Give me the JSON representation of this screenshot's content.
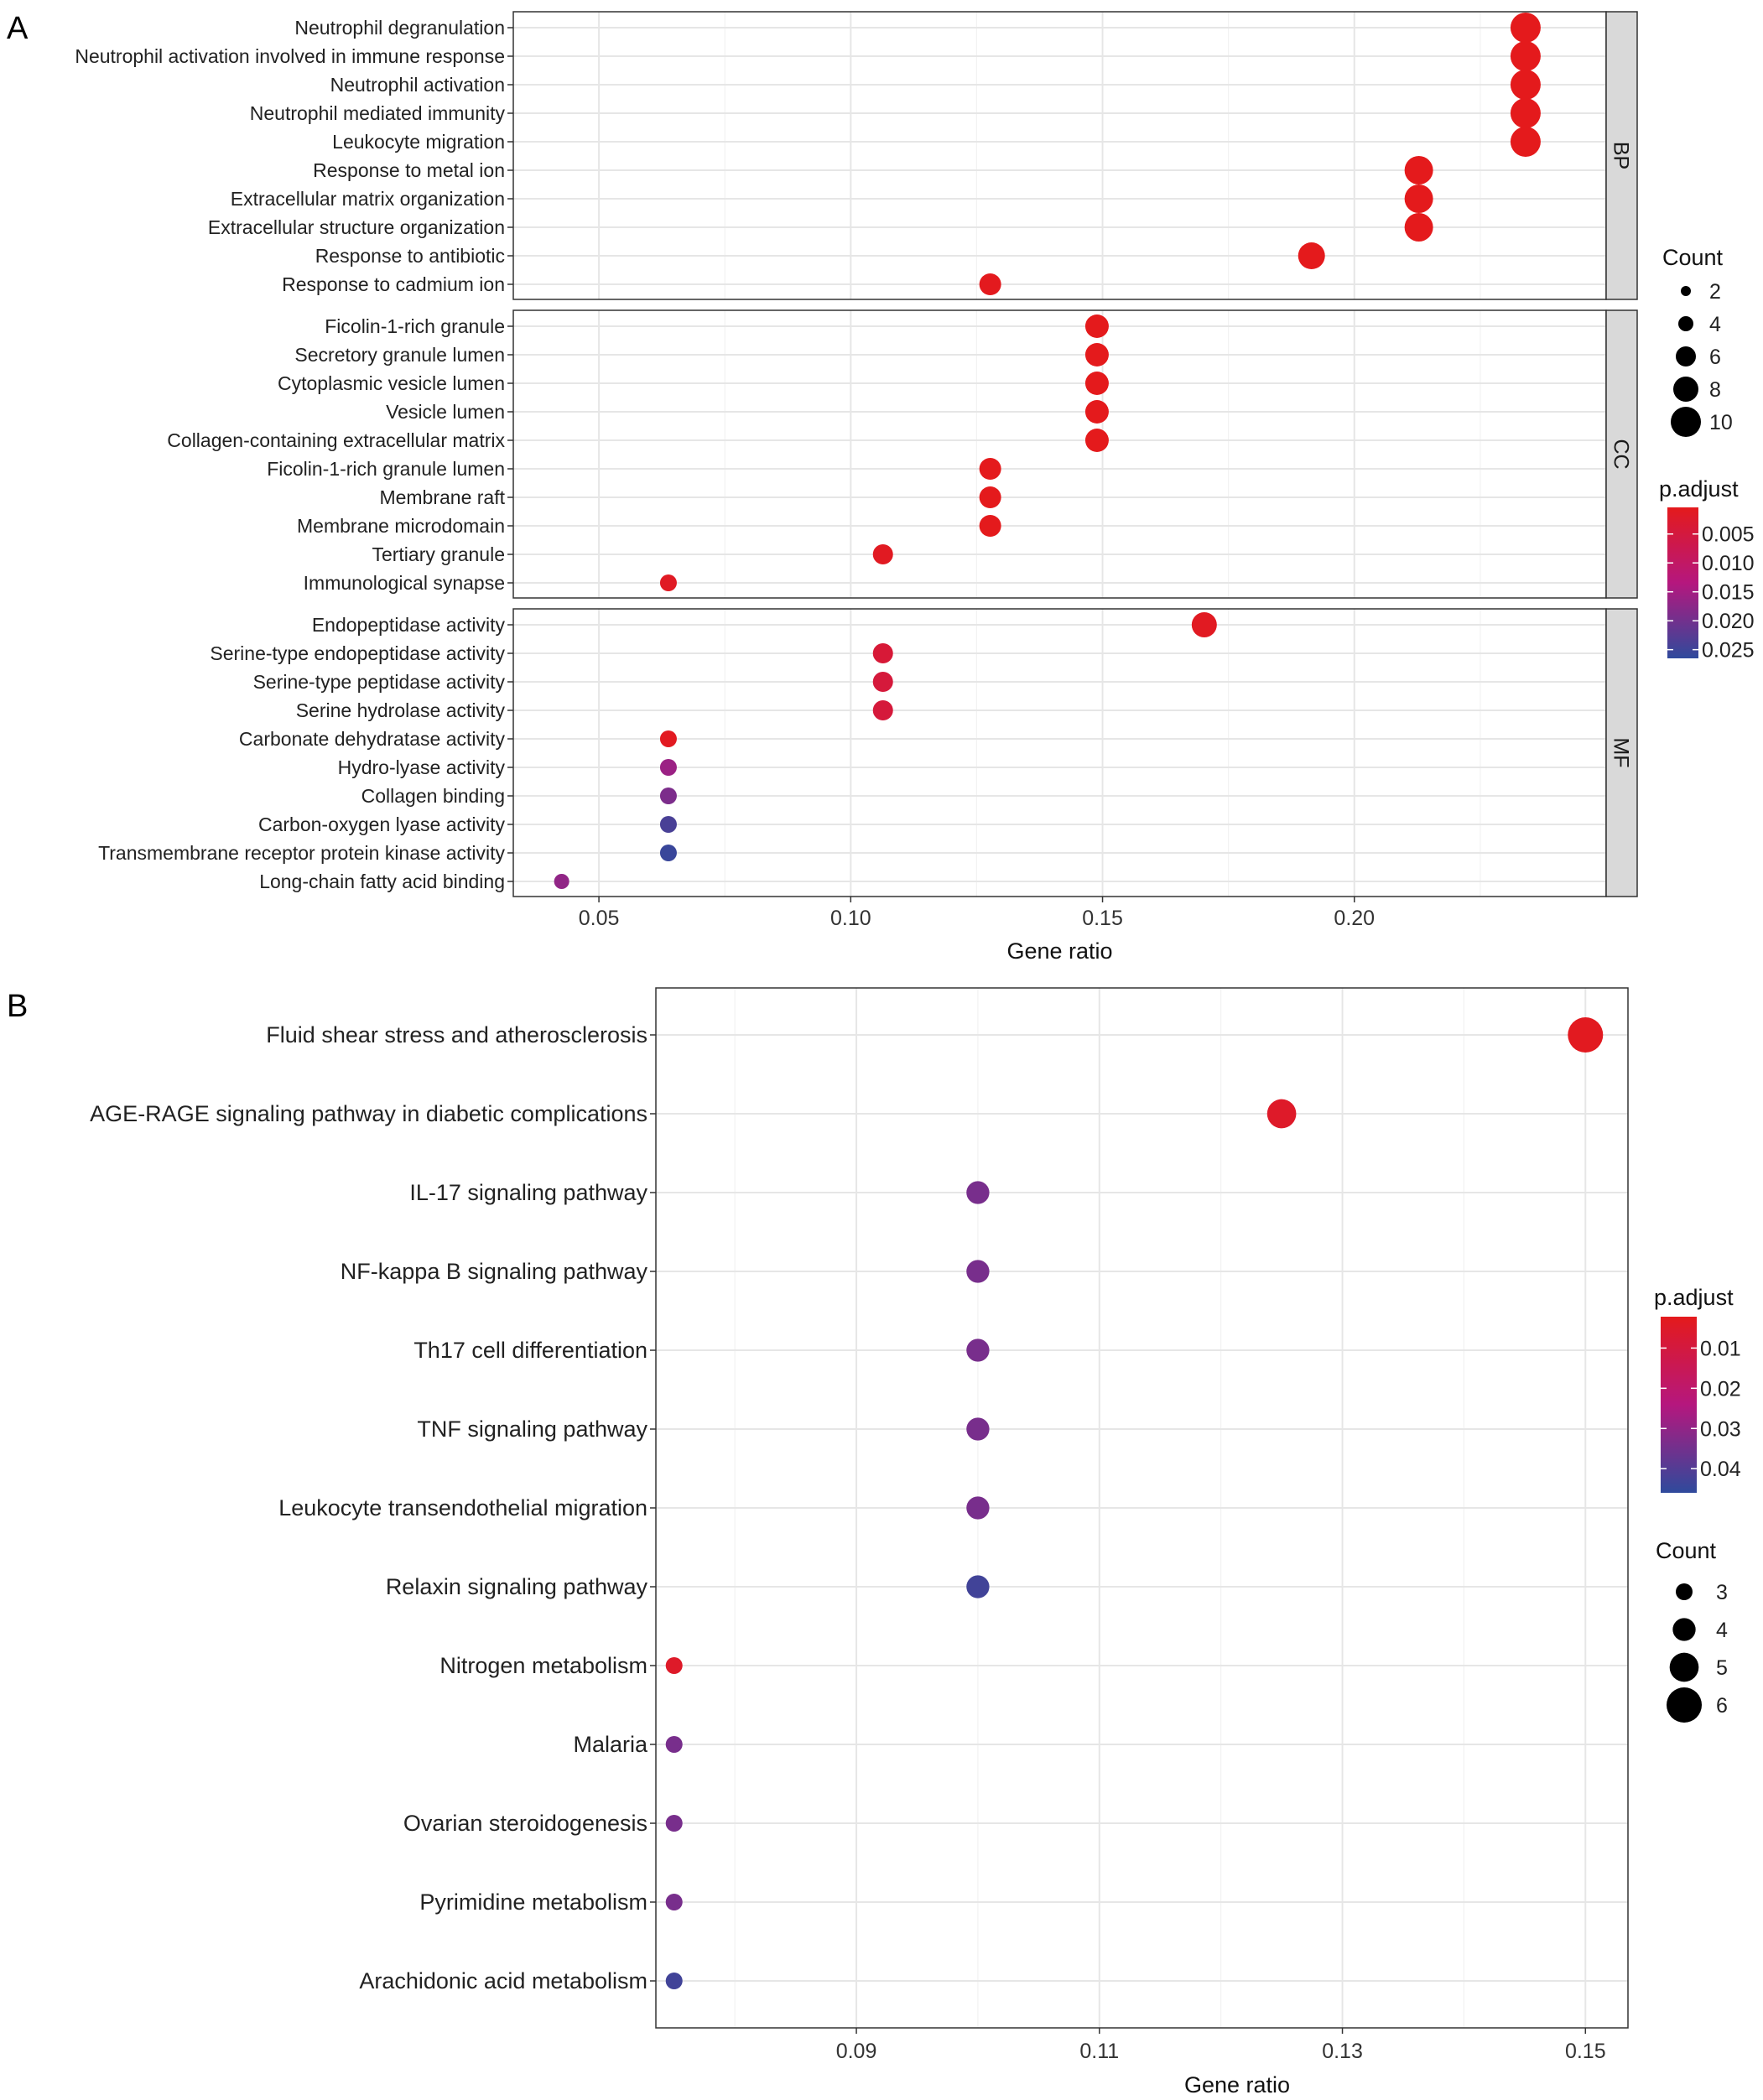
{
  "chart_data": [
    {
      "panel": "A",
      "type": "scatter",
      "xlabel": "Gene ratio",
      "xlim": [
        0.033,
        0.25
      ],
      "xticks": [
        "0.05",
        "0.10",
        "0.15",
        "0.20"
      ],
      "facets": [
        {
          "name": "BP",
          "terms": [
            {
              "label": "Neutrophil degranulation",
              "x": 0.234,
              "count": 11,
              "padj": 0.0004
            },
            {
              "label": "Neutrophil activation involved in immune response",
              "x": 0.234,
              "count": 11,
              "padj": 0.0004
            },
            {
              "label": "Neutrophil activation",
              "x": 0.234,
              "count": 11,
              "padj": 0.0004
            },
            {
              "label": "Neutrophil mediated immunity",
              "x": 0.234,
              "count": 11,
              "padj": 0.0004
            },
            {
              "label": "Leukocyte migration",
              "x": 0.234,
              "count": 11,
              "padj": 0.0004
            },
            {
              "label": "Response to metal ion",
              "x": 0.2128,
              "count": 10,
              "padj": 0.0004
            },
            {
              "label": "Extracellular matrix organization",
              "x": 0.2128,
              "count": 10,
              "padj": 0.0004
            },
            {
              "label": "Extracellular structure organization",
              "x": 0.2128,
              "count": 10,
              "padj": 0.0004
            },
            {
              "label": "Response to antibiotic",
              "x": 0.1915,
              "count": 9,
              "padj": 0.0004
            },
            {
              "label": "Response to cadmium ion",
              "x": 0.1277,
              "count": 6,
              "padj": 0.0006
            }
          ]
        },
        {
          "name": "CC",
          "terms": [
            {
              "label": "Ficolin-1-rich granule",
              "x": 0.1489,
              "count": 7,
              "padj": 0.0004
            },
            {
              "label": "Secretory granule lumen",
              "x": 0.1489,
              "count": 7,
              "padj": 0.0004
            },
            {
              "label": "Cytoplasmic vesicle lumen",
              "x": 0.1489,
              "count": 7,
              "padj": 0.0004
            },
            {
              "label": "Vesicle lumen",
              "x": 0.1489,
              "count": 7,
              "padj": 0.0004
            },
            {
              "label": "Collagen-containing extracellular matrix",
              "x": 0.1489,
              "count": 7,
              "padj": 0.0004
            },
            {
              "label": "Ficolin-1-rich granule lumen",
              "x": 0.1277,
              "count": 6,
              "padj": 0.0004
            },
            {
              "label": "Membrane raft",
              "x": 0.1277,
              "count": 6,
              "padj": 0.0004
            },
            {
              "label": "Membrane microdomain",
              "x": 0.1277,
              "count": 6,
              "padj": 0.0004
            },
            {
              "label": "Tertiary granule",
              "x": 0.1064,
              "count": 5,
              "padj": 0.0012
            },
            {
              "label": "Immunological synapse",
              "x": 0.0638,
              "count": 3,
              "padj": 0.0015
            }
          ]
        },
        {
          "name": "MF",
          "terms": [
            {
              "label": "Endopeptidase activity",
              "x": 0.1702,
              "count": 8,
              "padj": 0.0012
            },
            {
              "label": "Serine-type endopeptidase activity",
              "x": 0.1064,
              "count": 5,
              "padj": 0.004
            },
            {
              "label": "Serine-type peptidase activity",
              "x": 0.1064,
              "count": 5,
              "padj": 0.0045
            },
            {
              "label": "Serine hydrolase activity",
              "x": 0.1064,
              "count": 5,
              "padj": 0.0045
            },
            {
              "label": "Carbonate dehydratase activity",
              "x": 0.0638,
              "count": 3,
              "padj": 0.001
            },
            {
              "label": "Hydro-lyase activity",
              "x": 0.0638,
              "count": 3,
              "padj": 0.016
            },
            {
              "label": "Collagen binding",
              "x": 0.0638,
              "count": 3,
              "padj": 0.019
            },
            {
              "label": "Carbon-oxygen lyase activity",
              "x": 0.0638,
              "count": 3,
              "padj": 0.024
            },
            {
              "label": "Transmembrane receptor protein kinase activity",
              "x": 0.0638,
              "count": 3,
              "padj": 0.0255
            },
            {
              "label": "Long-chain fatty acid binding",
              "x": 0.0426,
              "count": 2,
              "padj": 0.017
            }
          ]
        }
      ],
      "legend_count": {
        "title": "Count",
        "values": [
          2,
          4,
          6,
          8,
          10
        ]
      },
      "legend_padj": {
        "title": "p.adjust",
        "ticks": [
          "0.005",
          "0.010",
          "0.015",
          "0.020",
          "0.025"
        ],
        "min": 0.0004,
        "max": 0.0265
      }
    },
    {
      "panel": "B",
      "type": "scatter",
      "xlabel": "Gene ratio",
      "xlim": [
        0.0735,
        0.1535
      ],
      "xticks": [
        "0.09",
        "0.11",
        "0.13",
        "0.15"
      ],
      "terms": [
        {
          "label": "Fluid shear stress and atherosclerosis",
          "x": 0.15,
          "count": 6,
          "padj": 0.003
        },
        {
          "label": "AGE-RAGE signaling pathway in diabetic complications",
          "x": 0.125,
          "count": 5,
          "padj": 0.005
        },
        {
          "label": "IL-17 signaling pathway",
          "x": 0.1,
          "count": 4,
          "padj": 0.034
        },
        {
          "label": "NF-kappa B signaling pathway",
          "x": 0.1,
          "count": 4,
          "padj": 0.034
        },
        {
          "label": "Th17 cell differentiation",
          "x": 0.1,
          "count": 4,
          "padj": 0.034
        },
        {
          "label": "TNF signaling pathway",
          "x": 0.1,
          "count": 4,
          "padj": 0.034
        },
        {
          "label": "Leukocyte transendothelial migration",
          "x": 0.1,
          "count": 4,
          "padj": 0.034
        },
        {
          "label": "Relaxin signaling pathway",
          "x": 0.1,
          "count": 4,
          "padj": 0.043
        },
        {
          "label": "Nitrogen metabolism",
          "x": 0.075,
          "count": 3,
          "padj": 0.005
        },
        {
          "label": "Malaria",
          "x": 0.075,
          "count": 3,
          "padj": 0.034
        },
        {
          "label": "Ovarian steroidogenesis",
          "x": 0.075,
          "count": 3,
          "padj": 0.034
        },
        {
          "label": "Pyrimidine metabolism",
          "x": 0.075,
          "count": 3,
          "padj": 0.034
        },
        {
          "label": "Arachidonic acid metabolism",
          "x": 0.075,
          "count": 3,
          "padj": 0.043
        }
      ],
      "legend_padj": {
        "title": "p.adjust",
        "ticks": [
          "0.01",
          "0.02",
          "0.03",
          "0.04"
        ],
        "min": 0.0022,
        "max": 0.046
      },
      "legend_count": {
        "title": "Count",
        "values": [
          3,
          4,
          5,
          6
        ]
      }
    }
  ],
  "colors": {
    "low_padj": "#e41a1c",
    "mid_padj": "#b5177e",
    "high_padj": "#2f4a9c"
  },
  "panel_labels": [
    "A",
    "B"
  ]
}
